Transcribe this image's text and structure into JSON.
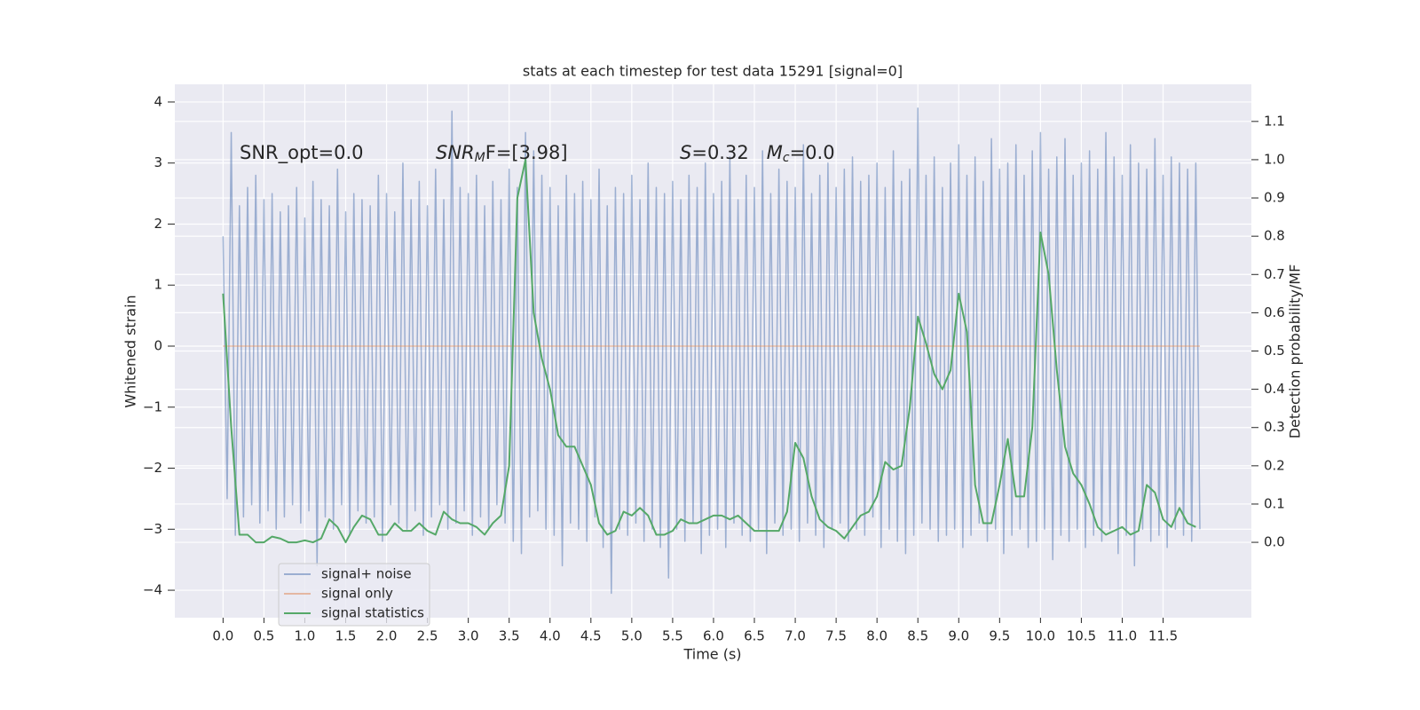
{
  "chart_data": {
    "type": "line",
    "title": "stats at each timestep for test data 15291 [signal=0]",
    "x_label": "Time (s)",
    "y_label": "Whitened strain",
    "y2_label": "Detection probability/MF",
    "xlim": [
      -0.59,
      12.58
    ],
    "ylim": [
      -4.45,
      4.29
    ],
    "y2lim": [
      -0.197,
      1.197
    ],
    "xticks": [
      {
        "value": 0,
        "label": "0.0"
      },
      0.5,
      {
        "value": 1,
        "label": "1.0"
      },
      1.5,
      {
        "value": 2,
        "label": "2.0"
      },
      2.5,
      {
        "value": 3,
        "label": "3.0"
      },
      3.5,
      {
        "value": 4,
        "label": "4.0"
      },
      4.5,
      {
        "value": 5,
        "label": "5.0"
      },
      5.5,
      {
        "value": 6,
        "label": "6.0"
      },
      6.5,
      {
        "value": 7,
        "label": "7.0"
      },
      7.5,
      {
        "value": 8,
        "label": "8.0"
      },
      8.5,
      {
        "value": 9,
        "label": "9.0"
      },
      9.5,
      {
        "value": 10,
        "label": "10.0"
      },
      10.5,
      {
        "value": 11,
        "label": "11.0"
      },
      11.5
    ],
    "yticks": [
      {
        "value": -4,
        "label": "−4"
      },
      {
        "value": -3,
        "label": "−3"
      },
      {
        "value": -2,
        "label": "−2"
      },
      {
        "value": -1,
        "label": "−1"
      },
      0,
      1,
      2,
      3,
      4
    ],
    "y2ticks": [
      {
        "value": 0,
        "label": "0.0"
      },
      0.1,
      0.2,
      0.3,
      0.4,
      0.5,
      0.6,
      0.7,
      0.8,
      0.9,
      {
        "value": 1,
        "label": "1.0"
      },
      1.1
    ],
    "grid": true,
    "legend": "lower left",
    "annotations": [
      [
        {
          "text": "SNR_opt=0.0",
          "style": "normal"
        }
      ],
      [
        {
          "text": "SNR",
          "style": "italic"
        },
        {
          "text": "M",
          "style": "sub"
        },
        {
          "text": "F=[3.98]",
          "style": "normal"
        }
      ],
      [
        {
          "text": "S",
          "style": "italic"
        },
        {
          "text": "=0.32   ",
          "style": "normal"
        },
        {
          "text": "M",
          "style": "italic"
        },
        {
          "text": "c",
          "style": "sub"
        },
        {
          "text": "=0.0",
          "style": "normal"
        }
      ]
    ],
    "series": [
      {
        "name": "signal+ noise",
        "color": "#4c72b0",
        "alpha": 0.5,
        "x": [
          0,
          0.05,
          0.1,
          0.15,
          0.2,
          0.25,
          0.3,
          0.35,
          0.4,
          0.45,
          0.5,
          0.55,
          0.6,
          0.65,
          0.7,
          0.75,
          0.8,
          0.85,
          0.9,
          0.95,
          1,
          1.05,
          1.1,
          1.15,
          1.2,
          1.25,
          1.3,
          1.35,
          1.4,
          1.45,
          1.5,
          1.55,
          1.6,
          1.65,
          1.7,
          1.75,
          1.8,
          1.85,
          1.9,
          1.95,
          2,
          2.05,
          2.1,
          2.15,
          2.2,
          2.25,
          2.3,
          2.35,
          2.4,
          2.45,
          2.5,
          2.55,
          2.6,
          2.65,
          2.7,
          2.75,
          2.8,
          2.85,
          2.9,
          2.95,
          3,
          3.05,
          3.1,
          3.15,
          3.2,
          3.25,
          3.3,
          3.35,
          3.4,
          3.45,
          3.5,
          3.55,
          3.6,
          3.65,
          3.7,
          3.75,
          3.8,
          3.85,
          3.9,
          3.95,
          4,
          4.05,
          4.1,
          4.15,
          4.2,
          4.25,
          4.3,
          4.35,
          4.4,
          4.45,
          4.5,
          4.55,
          4.6,
          4.65,
          4.7,
          4.75,
          4.8,
          4.85,
          4.9,
          4.95,
          5,
          5.05,
          5.1,
          5.15,
          5.2,
          5.25,
          5.3,
          5.35,
          5.4,
          5.45,
          5.5,
          5.55,
          5.6,
          5.65,
          5.7,
          5.75,
          5.8,
          5.85,
          5.9,
          5.95,
          6,
          6.05,
          6.1,
          6.15,
          6.2,
          6.25,
          6.3,
          6.35,
          6.4,
          6.45,
          6.5,
          6.55,
          6.6,
          6.65,
          6.7,
          6.75,
          6.8,
          6.85,
          6.9,
          6.95,
          7,
          7.05,
          7.1,
          7.15,
          7.2,
          7.25,
          7.3,
          7.35,
          7.4,
          7.45,
          7.5,
          7.55,
          7.6,
          7.65,
          7.7,
          7.75,
          7.8,
          7.85,
          7.9,
          7.95,
          8,
          8.05,
          8.1,
          8.15,
          8.2,
          8.25,
          8.3,
          8.35,
          8.4,
          8.45,
          8.5,
          8.55,
          8.6,
          8.65,
          8.7,
          8.75,
          8.8,
          8.85,
          8.9,
          8.95,
          9,
          9.05,
          9.1,
          9.15,
          9.2,
          9.25,
          9.3,
          9.35,
          9.4,
          9.45,
          9.5,
          9.55,
          9.6,
          9.65,
          9.7,
          9.75,
          9.8,
          9.85,
          9.9,
          9.95,
          10,
          10.05,
          10.1,
          10.15,
          10.2,
          10.25,
          10.3,
          10.35,
          10.4,
          10.45,
          10.5,
          10.55,
          10.6,
          10.65,
          10.7,
          10.75,
          10.8,
          10.85,
          10.9,
          10.95,
          11,
          11.05,
          11.1,
          11.15,
          11.2,
          11.25,
          11.3,
          11.35,
          11.4,
          11.45,
          11.5,
          11.55,
          11.6,
          11.65,
          11.7,
          11.75,
          11.8,
          11.85,
          11.9,
          11.95
        ],
        "values": [
          1.8,
          -2.5,
          3.5,
          -3.1,
          2.3,
          -2.8,
          2.6,
          -2.6,
          2.8,
          -2.9,
          2.4,
          -2.7,
          2.5,
          -3.0,
          2.2,
          -2.8,
          2.3,
          -2.6,
          2.6,
          -2.9,
          2.1,
          -2.7,
          2.7,
          -3.6,
          2.4,
          -2.8,
          2.3,
          -3.0,
          2.9,
          -2.6,
          2.2,
          -3.1,
          2.5,
          -2.7,
          2.4,
          -2.9,
          2.3,
          -2.8,
          2.8,
          -3.2,
          2.5,
          -2.6,
          2.2,
          -2.9,
          3.0,
          -3.0,
          2.4,
          -2.7,
          2.7,
          -3.1,
          2.3,
          -2.8,
          2.9,
          -2.6,
          2.4,
          -3.0,
          3.85,
          -2.9,
          2.6,
          -2.7,
          2.5,
          -3.1,
          2.8,
          -2.8,
          2.3,
          -3.0,
          2.7,
          -2.6,
          2.4,
          -2.9,
          2.9,
          -3.2,
          2.6,
          -3.4,
          3.5,
          -2.8,
          3.2,
          -2.7,
          2.8,
          -3.0,
          2.6,
          -3.1,
          2.3,
          -3.6,
          2.8,
          -2.9,
          2.5,
          -3.0,
          2.7,
          -3.2,
          2.4,
          -2.8,
          2.9,
          -3.3,
          2.3,
          -4.05,
          2.6,
          -3.0,
          2.5,
          -3.1,
          2.8,
          -2.9,
          2.4,
          -3.2,
          3.0,
          -3.0,
          2.6,
          -3.3,
          2.5,
          -3.8,
          2.7,
          -3.0,
          2.4,
          -3.2,
          2.8,
          -2.9,
          2.6,
          -3.4,
          3.0,
          -3.1,
          2.5,
          -3.0,
          2.7,
          -3.3,
          3.1,
          -2.9,
          2.4,
          -3.1,
          2.8,
          -3.2,
          2.6,
          -3.0,
          3.2,
          -3.4,
          2.5,
          -2.9,
          2.9,
          -3.1,
          2.7,
          -3.0,
          2.6,
          -3.2,
          3.3,
          -2.9,
          2.5,
          -3.1,
          2.8,
          -3.3,
          3.0,
          -3.0,
          2.6,
          -2.9,
          2.9,
          -3.2,
          3.1,
          -3.0,
          2.7,
          -3.1,
          2.8,
          -2.8,
          3.0,
          -3.3,
          2.6,
          -3.0,
          3.2,
          -3.2,
          2.7,
          -3.4,
          2.9,
          -3.1,
          3.9,
          -2.9,
          2.8,
          -3.0,
          3.1,
          -3.2,
          2.6,
          -3.1,
          3.0,
          -3.0,
          3.3,
          -3.3,
          2.8,
          -3.1,
          3.1,
          -2.9,
          2.7,
          -3.2,
          3.4,
          -3.0,
          2.9,
          -3.4,
          3.0,
          -3.1,
          3.3,
          -3.0,
          2.8,
          -3.3,
          3.2,
          -3.2,
          3.5,
          -3.0,
          2.9,
          -3.5,
          3.1,
          -3.1,
          3.4,
          -3.2,
          2.8,
          -3.0,
          3.0,
          -3.3,
          3.2,
          -3.1,
          2.9,
          -3.2,
          3.5,
          -3.0,
          3.1,
          -3.4,
          2.8,
          -3.1,
          3.3,
          -3.6,
          3.0,
          -3.0,
          2.9,
          -3.2,
          3.4,
          -3.1,
          2.8,
          -3.3,
          3.1,
          -3.0,
          3.0,
          -3.1,
          2.9,
          -3.2,
          3.0,
          -3.0
        ]
      },
      {
        "name": "signal only",
        "color": "#dd8452",
        "alpha": 0.5,
        "x": [
          0,
          11.95
        ],
        "values": [
          0,
          0
        ]
      },
      {
        "name": "signal statistics",
        "color": "#55a868",
        "alpha": 1,
        "axis": "y2",
        "x": [
          0,
          0.1,
          0.2,
          0.3,
          0.4,
          0.5,
          0.6,
          0.7,
          0.8,
          0.9,
          1,
          1.1,
          1.2,
          1.3,
          1.4,
          1.5,
          1.6,
          1.7,
          1.8,
          1.9,
          2,
          2.1,
          2.2,
          2.3,
          2.4,
          2.5,
          2.6,
          2.7,
          2.8,
          2.9,
          3,
          3.1,
          3.2,
          3.3,
          3.4,
          3.5,
          3.6,
          3.7,
          3.8,
          3.9,
          4,
          4.1,
          4.2,
          4.3,
          4.4,
          4.5,
          4.6,
          4.7,
          4.8,
          4.9,
          5,
          5.1,
          5.2,
          5.3,
          5.4,
          5.5,
          5.6,
          5.7,
          5.8,
          5.9,
          6,
          6.1,
          6.2,
          6.3,
          6.4,
          6.5,
          6.6,
          6.7,
          6.8,
          6.9,
          7,
          7.1,
          7.2,
          7.3,
          7.4,
          7.5,
          7.6,
          7.7,
          7.8,
          7.9,
          8,
          8.1,
          8.2,
          8.3,
          8.4,
          8.5,
          8.6,
          8.7,
          8.8,
          8.9,
          9,
          9.1,
          9.2,
          9.3,
          9.4,
          9.5,
          9.6,
          9.7,
          9.8,
          9.9,
          10,
          10.1,
          10.2,
          10.3,
          10.4,
          10.5,
          10.6,
          10.7,
          10.8,
          10.9,
          11,
          11.1,
          11.2,
          11.3,
          11.4,
          11.5,
          11.6,
          11.7,
          11.8,
          11.9
        ],
        "values": [
          0.65,
          0.3,
          0.02,
          0.02,
          0.0,
          0.0,
          0.015,
          0.01,
          0.0,
          0.0,
          0.005,
          0.0,
          0.01,
          0.06,
          0.04,
          0.0,
          0.04,
          0.07,
          0.06,
          0.02,
          0.02,
          0.05,
          0.03,
          0.03,
          0.05,
          0.03,
          0.02,
          0.08,
          0.06,
          0.05,
          0.05,
          0.04,
          0.02,
          0.05,
          0.07,
          0.2,
          0.9,
          1.0,
          0.6,
          0.48,
          0.4,
          0.28,
          0.25,
          0.25,
          0.2,
          0.15,
          0.05,
          0.02,
          0.03,
          0.08,
          0.07,
          0.09,
          0.07,
          0.02,
          0.02,
          0.03,
          0.06,
          0.05,
          0.05,
          0.06,
          0.07,
          0.07,
          0.06,
          0.07,
          0.05,
          0.03,
          0.03,
          0.03,
          0.03,
          0.08,
          0.26,
          0.22,
          0.12,
          0.06,
          0.04,
          0.03,
          0.01,
          0.04,
          0.07,
          0.08,
          0.12,
          0.21,
          0.19,
          0.2,
          0.35,
          0.59,
          0.52,
          0.44,
          0.4,
          0.45,
          0.65,
          0.55,
          0.15,
          0.05,
          0.05,
          0.15,
          0.27,
          0.12,
          0.12,
          0.3,
          0.81,
          0.7,
          0.45,
          0.25,
          0.18,
          0.15,
          0.1,
          0.04,
          0.02,
          0.03,
          0.04,
          0.02,
          0.03,
          0.15,
          0.13,
          0.06,
          0.04,
          0.09,
          0.05,
          0.04
        ]
      }
    ]
  }
}
